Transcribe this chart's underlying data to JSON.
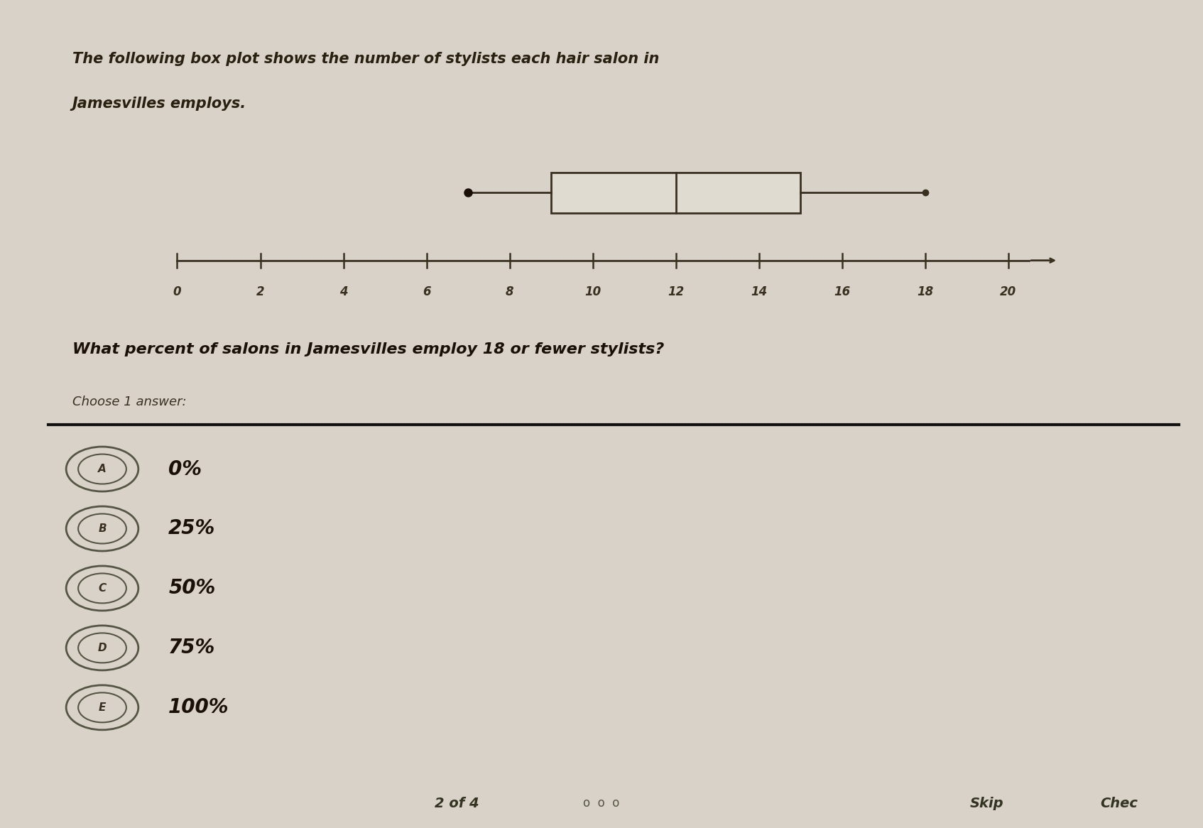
{
  "background_color": "#d8d2c8",
  "page_bg": "#e0dbd0",
  "title_line1": "The following box plot shows the number of stylists each hair salon in",
  "title_line2": "Jamesvilles employs.",
  "question": "What percent of salons in Jamesvilles employ 18 or fewer stylists?",
  "choose_label": "Choose 1 answer:",
  "answers": [
    "A",
    "B",
    "C",
    "D",
    "E"
  ],
  "answer_texts": [
    "0%",
    "25%",
    "50%",
    "75%",
    "100%"
  ],
  "boxplot": {
    "min": 7,
    "q1": 9,
    "median": 12,
    "q3": 15,
    "max": 18
  },
  "xaxis_min": 0,
  "xaxis_max": 20,
  "xaxis_ticks": [
    0,
    2,
    4,
    6,
    8,
    10,
    12,
    14,
    16,
    18,
    20
  ],
  "bottom_label_left": "2 of 4",
  "bottom_label_mid": "o  o  o",
  "bottom_label_right_1": "Skip",
  "bottom_label_right_2": "Chec"
}
